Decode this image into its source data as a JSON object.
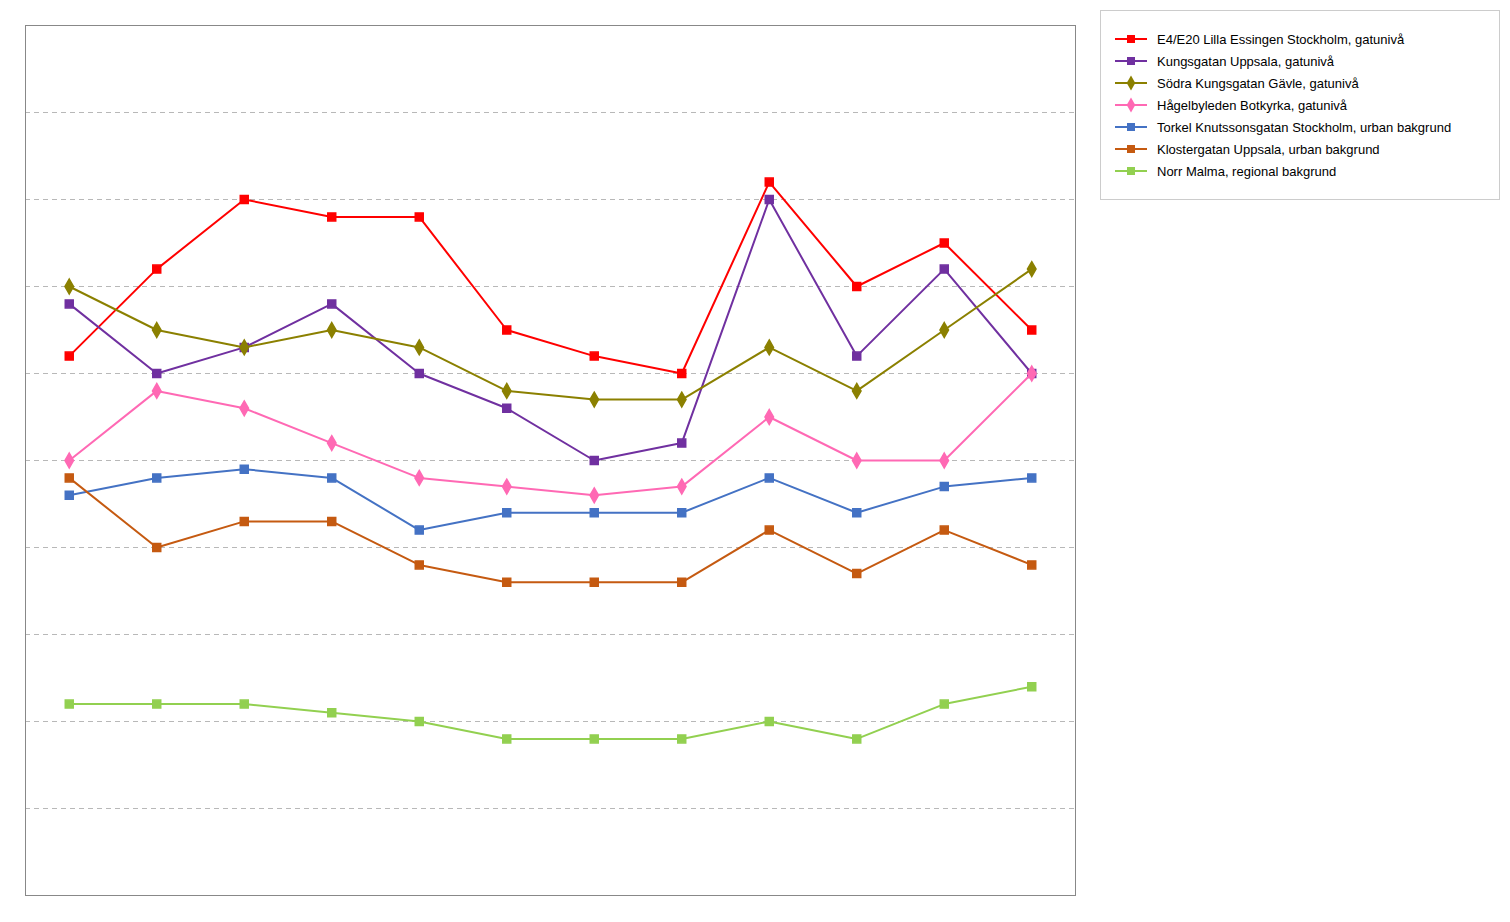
{
  "chart_data": {
    "type": "line",
    "x": [
      1,
      2,
      3,
      4,
      5,
      6,
      7,
      8,
      9,
      10,
      11,
      12
    ],
    "series": [
      {
        "name": "E4/E20 Lilla Essingen Stockholm, gatunivå",
        "color": "#FF0000",
        "marker": "square",
        "values": [
          62,
          72,
          80,
          78,
          78,
          65,
          62,
          60,
          82,
          70,
          75,
          65
        ]
      },
      {
        "name": "Kungsgatan Uppsala, gatunivå",
        "color": "#7030A0",
        "marker": "square",
        "values": [
          68,
          60,
          63,
          68,
          60,
          56,
          50,
          52,
          80,
          62,
          72,
          60
        ]
      },
      {
        "name": "Södra Kungsgatan Gävle, gatunivå",
        "color": "#8B8000",
        "marker": "diamond",
        "values": [
          70,
          65,
          63,
          65,
          63,
          58,
          57,
          57,
          63,
          58,
          65,
          72
        ]
      },
      {
        "name": "Hågelbyleden Botkyrka, gatunivå",
        "color": "#FF69B4",
        "marker": "diamond",
        "values": [
          50,
          58,
          56,
          52,
          48,
          47,
          46,
          47,
          55,
          50,
          50,
          60
        ]
      },
      {
        "name": "Torkel Knutssonsgatan Stockholm, urban bakgrund",
        "color": "#4472C4",
        "marker": "square",
        "values": [
          46,
          48,
          49,
          48,
          42,
          44,
          44,
          44,
          48,
          44,
          47,
          48
        ]
      },
      {
        "name": "Klostergatan Uppsala, urban bakgrund",
        "color": "#C55A11",
        "marker": "square",
        "values": [
          48,
          40,
          43,
          43,
          38,
          36,
          36,
          36,
          42,
          37,
          42,
          38
        ]
      },
      {
        "name": "Norr Malma, regional bakgrund",
        "color": "#92D050",
        "marker": "square",
        "values": [
          22,
          22,
          22,
          21,
          20,
          18,
          18,
          18,
          20,
          18,
          22,
          24
        ]
      }
    ],
    "xlim": [
      0.5,
      12.5
    ],
    "ylim": [
      0,
      100
    ],
    "yticks": [
      10,
      20,
      30,
      40,
      50,
      60,
      70,
      80,
      90,
      100
    ],
    "grid": true,
    "legend": "upper right",
    "tick_labels": false
  }
}
